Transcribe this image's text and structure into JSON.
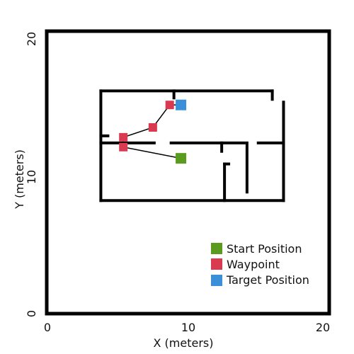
{
  "chart_data": {
    "type": "scatter",
    "xlabel": "X (meters)",
    "ylabel": "Y (meters)",
    "xlim": [
      0,
      20
    ],
    "ylim": [
      0,
      20
    ],
    "x_ticks": [
      "0",
      "10",
      "20"
    ],
    "y_ticks": [
      "0",
      "10",
      "20"
    ],
    "grid": false,
    "legend_position": "bottom-right",
    "series": [
      {
        "name": "Start Position",
        "color": "#5a9a1e",
        "points": [
          [
            9.5,
            11.0
          ]
        ]
      },
      {
        "name": "Waypoint",
        "color": "#d93a50",
        "points": [
          [
            5.4,
            11.8
          ],
          [
            5.4,
            12.5
          ],
          [
            7.5,
            13.2
          ],
          [
            8.7,
            14.8
          ]
        ]
      },
      {
        "name": "Target Position",
        "color": "#3a8fd8",
        "points": [
          [
            9.5,
            14.8
          ]
        ]
      }
    ],
    "path": [
      [
        9.5,
        11.0
      ],
      [
        5.4,
        11.8
      ],
      [
        5.4,
        12.5
      ],
      [
        7.5,
        13.2
      ],
      [
        8.7,
        14.8
      ],
      [
        9.5,
        14.8
      ]
    ],
    "walls": [
      [
        [
          3.8,
          15.8
        ],
        [
          16.0,
          15.8
        ]
      ],
      [
        [
          3.8,
          15.8
        ],
        [
          3.8,
          8.0
        ]
      ],
      [
        [
          3.8,
          8.0
        ],
        [
          16.8,
          8.0
        ]
      ],
      [
        [
          16.8,
          8.0
        ],
        [
          16.8,
          15.0
        ]
      ],
      [
        [
          16.0,
          15.8
        ],
        [
          16.0,
          15.2
        ]
      ],
      [
        [
          3.8,
          12.1
        ],
        [
          7.6,
          12.1
        ]
      ],
      [
        [
          8.8,
          12.1
        ],
        [
          14.0,
          12.1
        ]
      ],
      [
        [
          15.0,
          12.1
        ],
        [
          16.8,
          12.1
        ]
      ],
      [
        [
          12.6,
          10.6
        ],
        [
          12.6,
          8.0
        ]
      ],
      [
        [
          12.6,
          10.6
        ],
        [
          12.9,
          10.6
        ]
      ],
      [
        [
          9.0,
          15.8
        ],
        [
          9.0,
          15.3
        ]
      ],
      [
        [
          14.2,
          12.1
        ],
        [
          14.2,
          8.6
        ]
      ],
      [
        [
          12.4,
          12.1
        ],
        [
          12.4,
          11.5
        ]
      ],
      [
        [
          4.3,
          12.6
        ],
        [
          3.8,
          12.6
        ]
      ]
    ]
  }
}
